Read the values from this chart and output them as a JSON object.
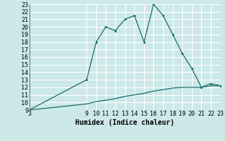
{
  "xlabel": "Humidex (Indice chaleur)",
  "bg_color": "#cce8e8",
  "grid_color": "#ffffff",
  "line_color": "#1a6b6b",
  "xlim": [
    3,
    23
  ],
  "ylim": [
    9,
    23
  ],
  "xticks": [
    3,
    9,
    10,
    11,
    12,
    13,
    14,
    15,
    16,
    17,
    18,
    19,
    20,
    21,
    22,
    23
  ],
  "yticks": [
    9,
    10,
    11,
    12,
    13,
    14,
    15,
    16,
    17,
    18,
    19,
    20,
    21,
    22,
    23
  ],
  "line1_x": [
    3,
    9,
    10,
    11,
    12,
    13,
    14,
    15,
    16,
    17,
    18,
    19,
    20,
    21,
    22,
    23
  ],
  "line1_y": [
    9,
    13,
    18,
    20,
    19.5,
    21,
    21.5,
    18,
    23,
    21.5,
    19,
    16.5,
    14.5,
    12,
    12.5,
    12.2
  ],
  "line2_x": [
    3,
    9,
    10,
    11,
    12,
    13,
    14,
    15,
    16,
    17,
    18,
    19,
    20,
    21,
    22,
    23
  ],
  "line2_y": [
    9,
    9.8,
    10.1,
    10.3,
    10.5,
    10.8,
    11.0,
    11.2,
    11.5,
    11.7,
    11.9,
    12.0,
    12.0,
    12.0,
    12.2,
    12.2
  ],
  "xlabel_fontsize": 7,
  "tick_fontsize": 6
}
